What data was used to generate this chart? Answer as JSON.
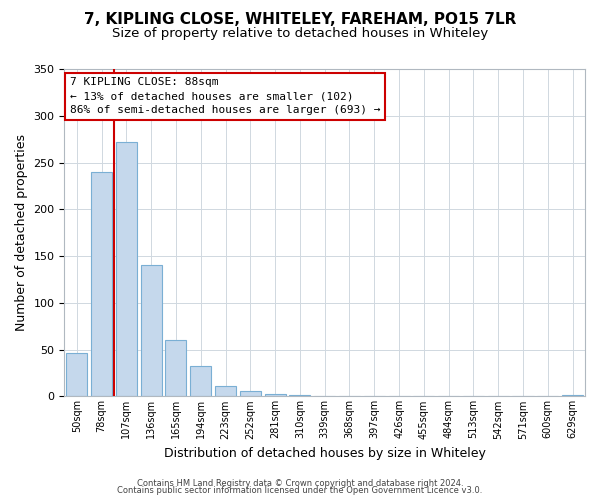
{
  "title": "7, KIPLING CLOSE, WHITELEY, FAREHAM, PO15 7LR",
  "subtitle": "Size of property relative to detached houses in Whiteley",
  "xlabel": "Distribution of detached houses by size in Whiteley",
  "ylabel": "Number of detached properties",
  "bar_labels": [
    "50sqm",
    "78sqm",
    "107sqm",
    "136sqm",
    "165sqm",
    "194sqm",
    "223sqm",
    "252sqm",
    "281sqm",
    "310sqm",
    "339sqm",
    "368sqm",
    "397sqm",
    "426sqm",
    "455sqm",
    "484sqm",
    "513sqm",
    "542sqm",
    "571sqm",
    "600sqm",
    "629sqm"
  ],
  "bar_values": [
    46,
    240,
    272,
    140,
    60,
    32,
    11,
    6,
    3,
    2,
    0,
    0,
    0,
    0,
    0,
    0,
    0,
    0,
    0,
    0,
    2
  ],
  "bar_color": "#c5d8ec",
  "bar_edge_color": "#7aafd4",
  "vline_x": 1.5,
  "vline_color": "#cc0000",
  "ylim": [
    0,
    350
  ],
  "yticks": [
    0,
    50,
    100,
    150,
    200,
    250,
    300,
    350
  ],
  "annotation_title": "7 KIPLING CLOSE: 88sqm",
  "annotation_line1": "← 13% of detached houses are smaller (102)",
  "annotation_line2": "86% of semi-detached houses are larger (693) →",
  "annotation_box_color": "#ffffff",
  "annotation_box_edge": "#cc0000",
  "footer1": "Contains HM Land Registry data © Crown copyright and database right 2024.",
  "footer2": "Contains public sector information licensed under the Open Government Licence v3.0.",
  "background_color": "#ffffff",
  "plot_background": "#ffffff",
  "title_fontsize": 11,
  "subtitle_fontsize": 9.5,
  "grid_color": "#d0d8e0"
}
